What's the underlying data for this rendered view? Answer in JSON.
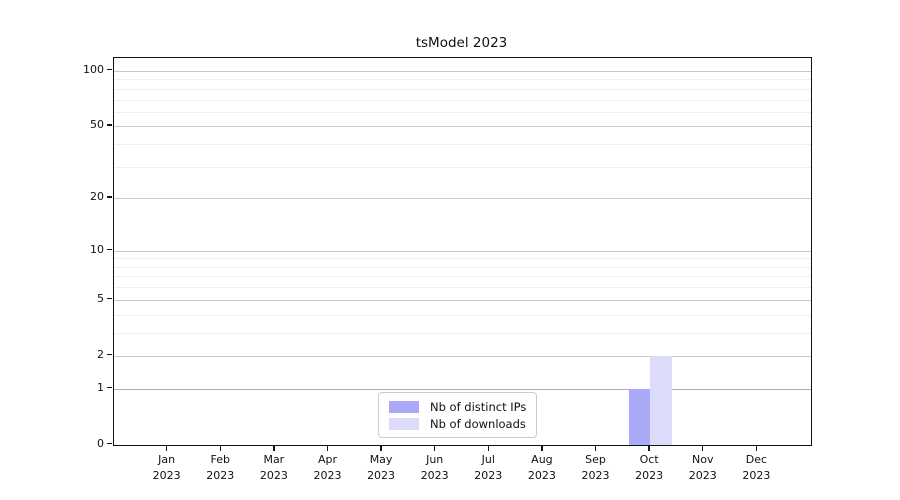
{
  "chart_data": {
    "type": "bar",
    "title": "tsModel 2023",
    "categories": [
      "Jan",
      "Feb",
      "Mar",
      "Apr",
      "May",
      "Jun",
      "Jul",
      "Aug",
      "Sep",
      "Oct",
      "Nov",
      "Dec"
    ],
    "category_year": "2023",
    "series": [
      {
        "name": "Nb of distinct IPs",
        "color": "#a9a9f7",
        "values": [
          0,
          0,
          0,
          0,
          0,
          0,
          0,
          0,
          0,
          1,
          0,
          0
        ]
      },
      {
        "name": "Nb of downloads",
        "color": "#dcdcfa",
        "values": [
          0,
          0,
          0,
          0,
          0,
          0,
          0,
          0,
          0,
          2,
          0,
          0
        ]
      }
    ],
    "xlabel": "",
    "ylabel": "",
    "yscale": "log10(1+v)",
    "ylim": [
      0,
      117
    ],
    "yticks_major": [
      0,
      1,
      2,
      5,
      10,
      20,
      50,
      100
    ],
    "yticks_minor": [
      3,
      4,
      6,
      7,
      8,
      9,
      30,
      40,
      60,
      70,
      80,
      90
    ],
    "emphasized_gridline": 1,
    "grid": "horizontal",
    "legend_position": "lower-center",
    "colors": {
      "major_grid": "#c9c9c9",
      "minor_grid": "#efefef",
      "emphasis_grid": "#aeaeae",
      "spine": "#111111",
      "text": "#111111",
      "legend_border": "#cccccc",
      "background": "#ffffff"
    }
  }
}
